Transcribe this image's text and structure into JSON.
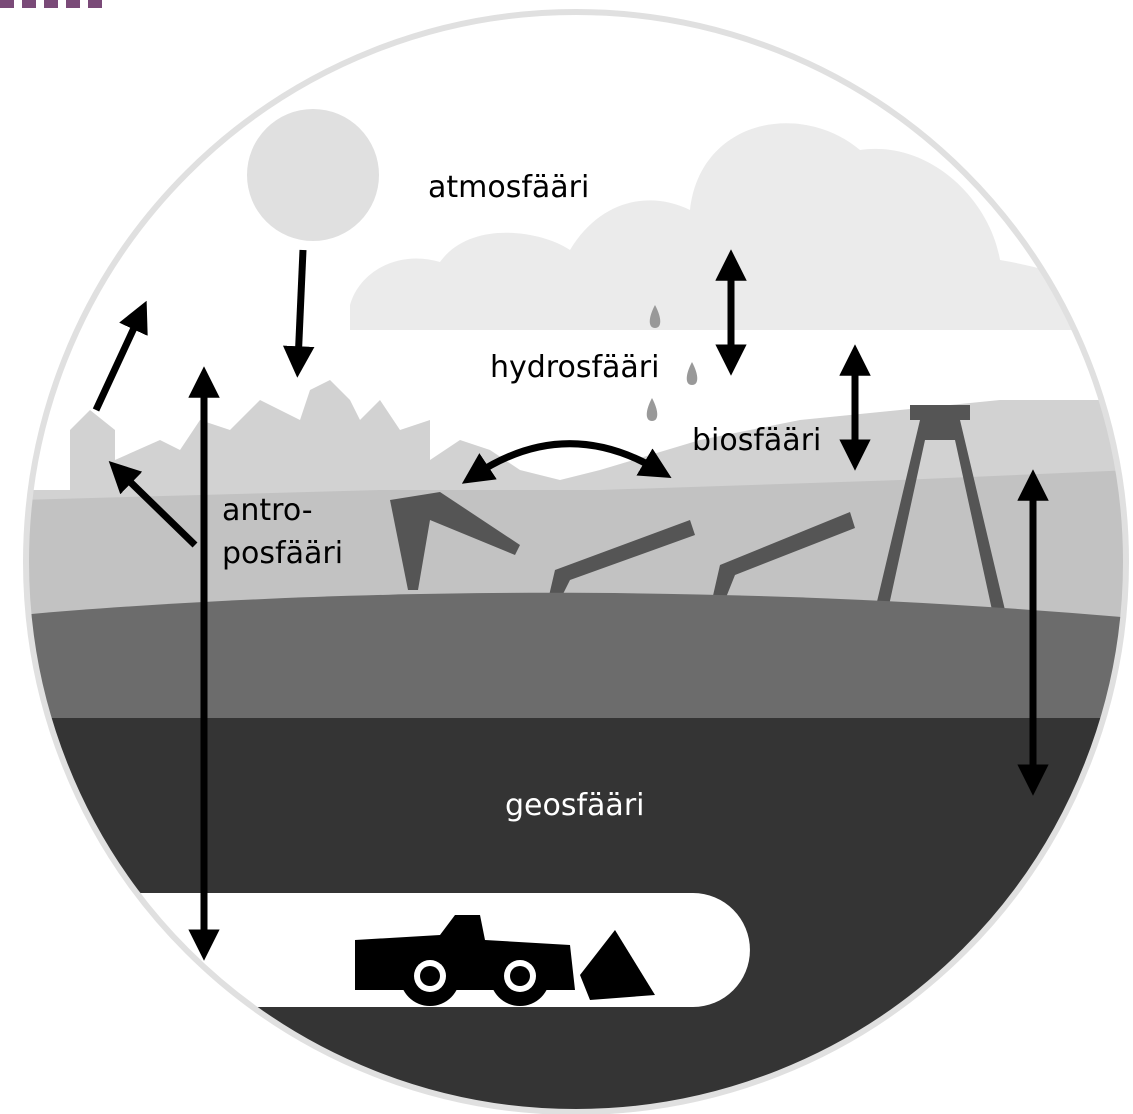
{
  "spheres": {
    "atmosphere": "atmosfääri",
    "hydrosphere": "hydrosfääri",
    "biosphere": "biosfääri",
    "anthroposphere": [
      "antro-",
      "posfääri"
    ],
    "geosphere": "geosfääri"
  }
}
